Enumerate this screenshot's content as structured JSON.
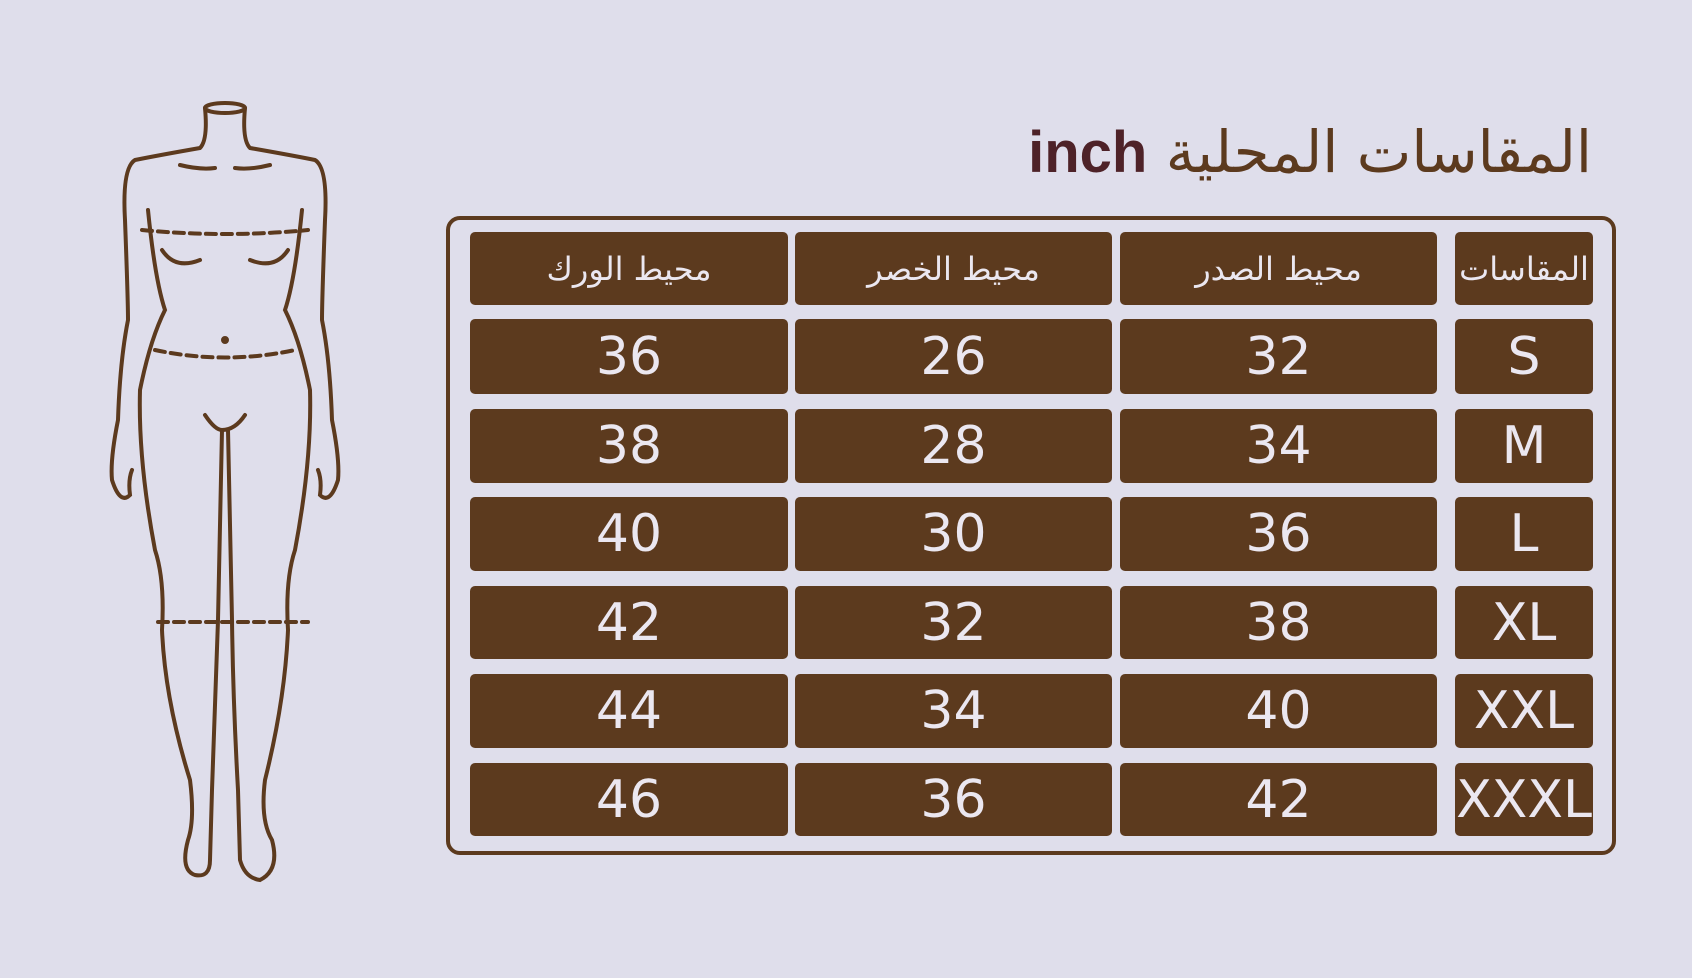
{
  "title": {
    "text": "المقاسات المحلية",
    "unit": "inch"
  },
  "colors": {
    "background": "#dfdeeb",
    "brand": "#5c3a1e",
    "cell_text": "#ebe7f0",
    "unit_text": "#4e2228"
  },
  "table": {
    "headers": [
      "المقاسات",
      "محيط الصدر",
      "محيط الخصر",
      "محيط الورك"
    ],
    "rows": [
      [
        "S",
        "32",
        "26",
        "36"
      ],
      [
        "M",
        "34",
        "28",
        "38"
      ],
      [
        "L",
        "36",
        "30",
        "40"
      ],
      [
        "XL",
        "38",
        "32",
        "42"
      ],
      [
        "XXL",
        "40",
        "34",
        "44"
      ],
      [
        "XXXL",
        "42",
        "36",
        "46"
      ]
    ]
  },
  "figure": {
    "icon": "body-measurement-icon"
  }
}
